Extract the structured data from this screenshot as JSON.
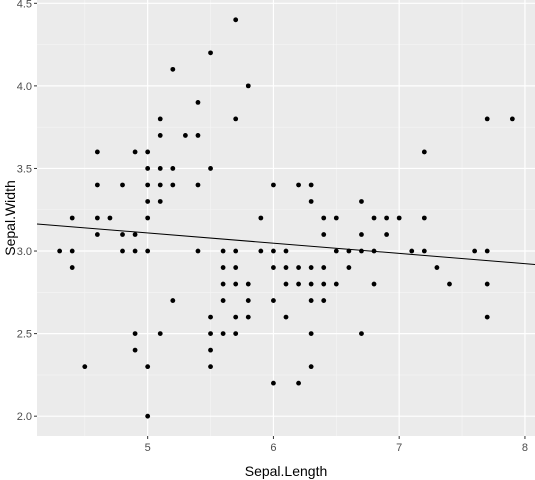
{
  "chart_data": {
    "type": "scatter",
    "xlabel": "Sepal.Length",
    "ylabel": "Sepal.Width",
    "xlim": [
      4.12,
      8.08
    ],
    "ylim": [
      1.88,
      4.52
    ],
    "x_ticks": [
      5,
      6,
      7,
      8
    ],
    "x_tick_labels": [
      "5",
      "6",
      "7",
      "8"
    ],
    "y_ticks": [
      2.0,
      2.5,
      3.0,
      3.5,
      4.0,
      4.5
    ],
    "y_tick_labels": [
      "2.0",
      "2.5",
      "3.0",
      "3.5",
      "4.0",
      "4.5"
    ],
    "grid": true,
    "trend_line": {
      "intercept": 3.4189,
      "slope": -0.0619
    },
    "points": [
      [
        4.3,
        3.0
      ],
      [
        4.4,
        2.9
      ],
      [
        4.4,
        3.0
      ],
      [
        4.4,
        3.2
      ],
      [
        4.5,
        2.3
      ],
      [
        4.6,
        3.1
      ],
      [
        4.6,
        3.2
      ],
      [
        4.6,
        3.4
      ],
      [
        4.6,
        3.6
      ],
      [
        4.7,
        3.2
      ],
      [
        4.8,
        3.0
      ],
      [
        4.8,
        3.1
      ],
      [
        4.8,
        3.4
      ],
      [
        4.9,
        2.4
      ],
      [
        4.9,
        2.5
      ],
      [
        4.9,
        3.0
      ],
      [
        4.9,
        3.1
      ],
      [
        4.9,
        3.6
      ],
      [
        5.0,
        2.0
      ],
      [
        5.0,
        2.3
      ],
      [
        5.0,
        3.0
      ],
      [
        5.0,
        3.2
      ],
      [
        5.0,
        3.3
      ],
      [
        5.0,
        3.4
      ],
      [
        5.0,
        3.5
      ],
      [
        5.0,
        3.6
      ],
      [
        5.1,
        2.5
      ],
      [
        5.1,
        3.3
      ],
      [
        5.1,
        3.4
      ],
      [
        5.1,
        3.5
      ],
      [
        5.1,
        3.7
      ],
      [
        5.1,
        3.8
      ],
      [
        5.2,
        2.7
      ],
      [
        5.2,
        3.4
      ],
      [
        5.2,
        3.5
      ],
      [
        5.2,
        4.1
      ],
      [
        5.3,
        3.7
      ],
      [
        5.4,
        3.0
      ],
      [
        5.4,
        3.4
      ],
      [
        5.4,
        3.7
      ],
      [
        5.4,
        3.9
      ],
      [
        5.5,
        2.3
      ],
      [
        5.5,
        2.4
      ],
      [
        5.5,
        2.5
      ],
      [
        5.5,
        2.6
      ],
      [
        5.5,
        3.5
      ],
      [
        5.5,
        4.2
      ],
      [
        5.6,
        2.5
      ],
      [
        5.6,
        2.7
      ],
      [
        5.6,
        2.8
      ],
      [
        5.6,
        2.9
      ],
      [
        5.6,
        3.0
      ],
      [
        5.7,
        2.5
      ],
      [
        5.7,
        2.6
      ],
      [
        5.7,
        2.8
      ],
      [
        5.7,
        2.9
      ],
      [
        5.7,
        3.0
      ],
      [
        5.7,
        3.8
      ],
      [
        5.7,
        4.4
      ],
      [
        5.8,
        2.6
      ],
      [
        5.8,
        2.7
      ],
      [
        5.8,
        2.8
      ],
      [
        5.8,
        4.0
      ],
      [
        5.9,
        3.0
      ],
      [
        5.9,
        3.2
      ],
      [
        6.0,
        2.2
      ],
      [
        6.0,
        2.7
      ],
      [
        6.0,
        2.9
      ],
      [
        6.0,
        3.0
      ],
      [
        6.0,
        3.4
      ],
      [
        6.1,
        2.6
      ],
      [
        6.1,
        2.8
      ],
      [
        6.1,
        2.9
      ],
      [
        6.1,
        3.0
      ],
      [
        6.2,
        2.2
      ],
      [
        6.2,
        2.8
      ],
      [
        6.2,
        2.9
      ],
      [
        6.2,
        3.4
      ],
      [
        6.3,
        2.3
      ],
      [
        6.3,
        2.5
      ],
      [
        6.3,
        2.7
      ],
      [
        6.3,
        2.8
      ],
      [
        6.3,
        2.9
      ],
      [
        6.3,
        3.3
      ],
      [
        6.3,
        3.4
      ],
      [
        6.4,
        2.7
      ],
      [
        6.4,
        2.8
      ],
      [
        6.4,
        2.9
      ],
      [
        6.4,
        3.1
      ],
      [
        6.4,
        3.2
      ],
      [
        6.5,
        2.8
      ],
      [
        6.5,
        3.0
      ],
      [
        6.5,
        3.2
      ],
      [
        6.6,
        2.9
      ],
      [
        6.6,
        3.0
      ],
      [
        6.7,
        2.5
      ],
      [
        6.7,
        3.0
      ],
      [
        6.7,
        3.1
      ],
      [
        6.7,
        3.3
      ],
      [
        6.8,
        2.8
      ],
      [
        6.8,
        3.0
      ],
      [
        6.8,
        3.2
      ],
      [
        6.9,
        3.1
      ],
      [
        6.9,
        3.2
      ],
      [
        7.0,
        3.2
      ],
      [
        7.1,
        3.0
      ],
      [
        7.2,
        3.0
      ],
      [
        7.2,
        3.2
      ],
      [
        7.2,
        3.6
      ],
      [
        7.3,
        2.9
      ],
      [
        7.4,
        2.8
      ],
      [
        7.6,
        3.0
      ],
      [
        7.7,
        2.6
      ],
      [
        7.7,
        2.8
      ],
      [
        7.7,
        3.0
      ],
      [
        7.7,
        3.8
      ],
      [
        7.9,
        3.8
      ]
    ]
  }
}
